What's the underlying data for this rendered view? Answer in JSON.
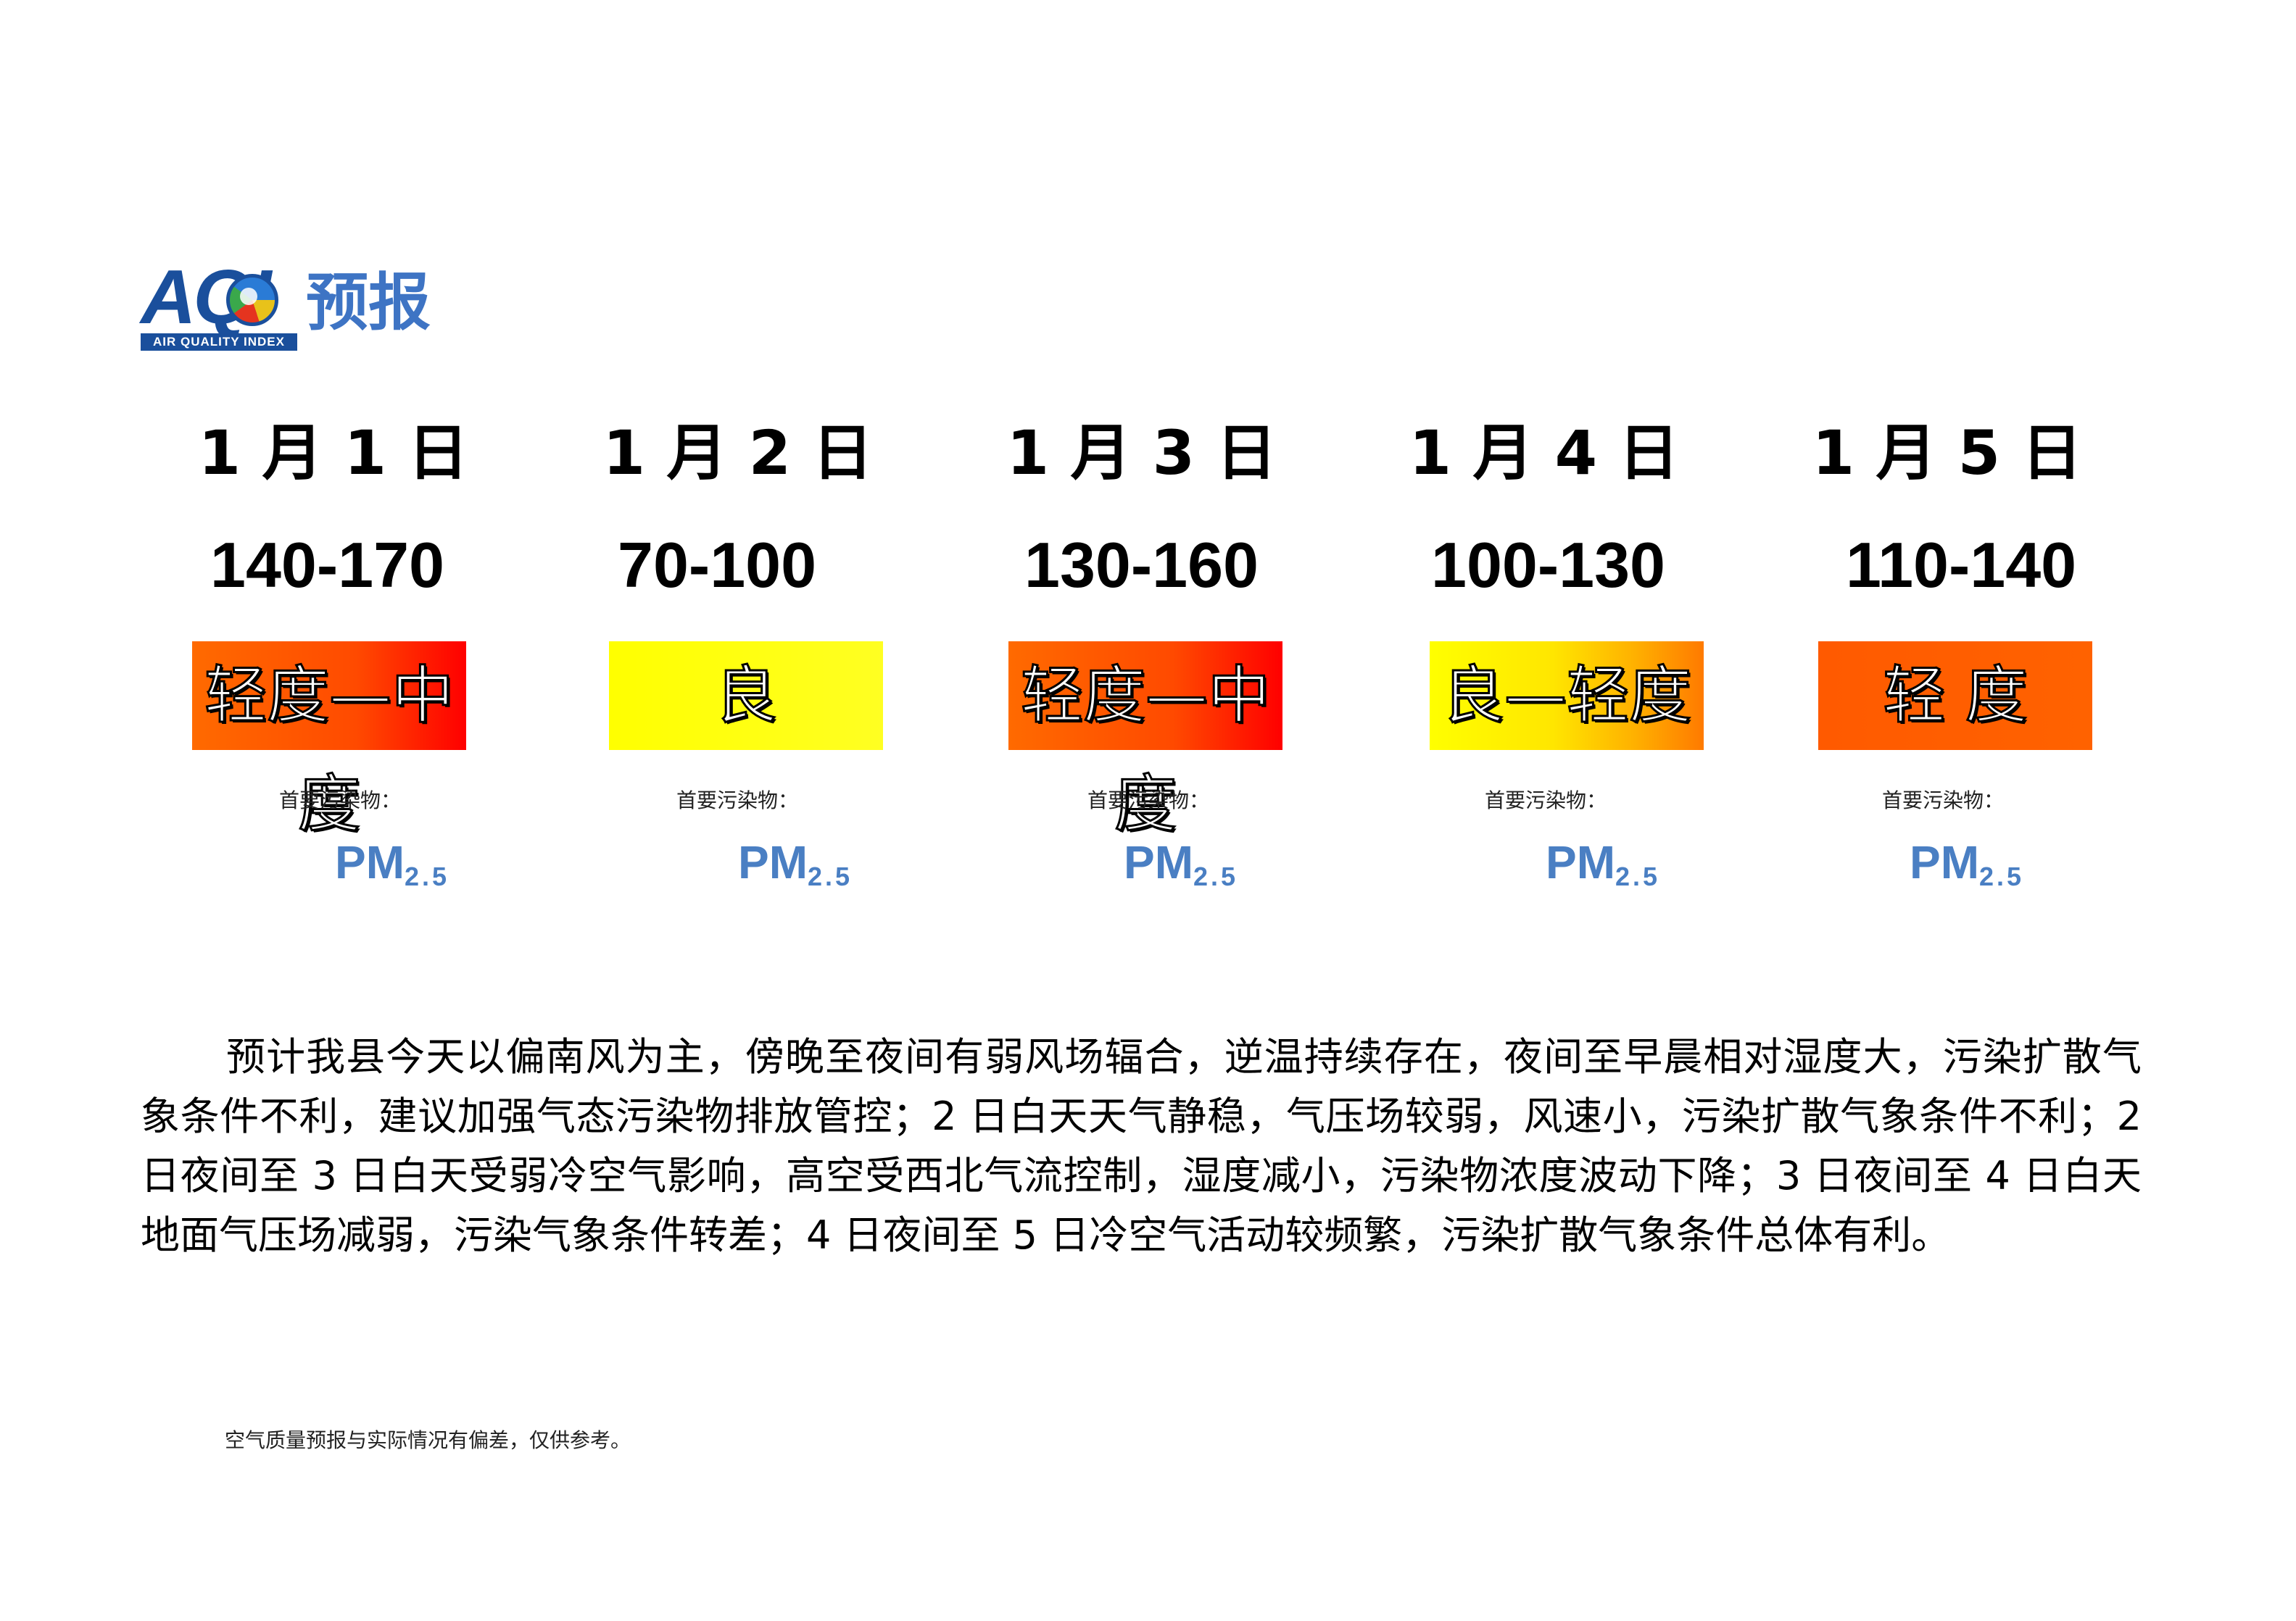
{
  "header": {
    "logo_acronym": "AQI",
    "logo_subtext": "AIR QUALITY INDEX",
    "title": "预报"
  },
  "days": [
    {
      "date": "1 月 1 日",
      "aqi_range": "140-170",
      "level": "轻度—中度",
      "pollutant_label": "首要污染物：",
      "pollutant_main": "PM",
      "pollutant_sub": "2.5"
    },
    {
      "date": "1 月 2 日",
      "aqi_range": "70-100",
      "level": "良",
      "pollutant_label": "首要污染物：",
      "pollutant_main": "PM",
      "pollutant_sub": "2.5"
    },
    {
      "date": "1 月 3 日",
      "aqi_range": "130-160",
      "level": "轻度—中度",
      "pollutant_label": "首要污染物：",
      "pollutant_main": "PM",
      "pollutant_sub": "2.5"
    },
    {
      "date": "1 月 4 日",
      "aqi_range": "100-130",
      "level": "良—轻度",
      "pollutant_label": "首要污染物：",
      "pollutant_main": "PM",
      "pollutant_sub": "2.5"
    },
    {
      "date": "1 月 5 日",
      "aqi_range": "110-140",
      "level": "轻 度",
      "pollutant_label": "首要污染物：",
      "pollutant_main": "PM",
      "pollutant_sub": "2.5"
    }
  ],
  "colors": {
    "logo_blue": "#1a4f9c",
    "title_blue": "#3e74c4",
    "pm_blue": "#4a7fc3",
    "level_light_moderate": "#ff3a00",
    "level_good": "#ffff00",
    "level_good_light": "#ffb000",
    "level_light": "#ff5a00"
  },
  "description": "预计我县今天以偏南风为主，傍晚至夜间有弱风场辐合，逆温持续存在，夜间至早晨相对湿度大，污染扩散气象条件不利，建议加强气态污染物排放管控；2 日白天天气静稳，气压场较弱，风速小，污染扩散气象条件不利；2 日夜间至 3 日白天受弱冷空气影响，高空受西北气流控制，湿度减小，污染物浓度波动下降；3 日夜间至 4 日白天地面气压场减弱，污染气象条件转差；4 日夜间至 5 日冷空气活动较频繁，污染扩散气象条件总体有利。",
  "footnote": "空气质量预报与实际情况有偏差，仅供参考。"
}
